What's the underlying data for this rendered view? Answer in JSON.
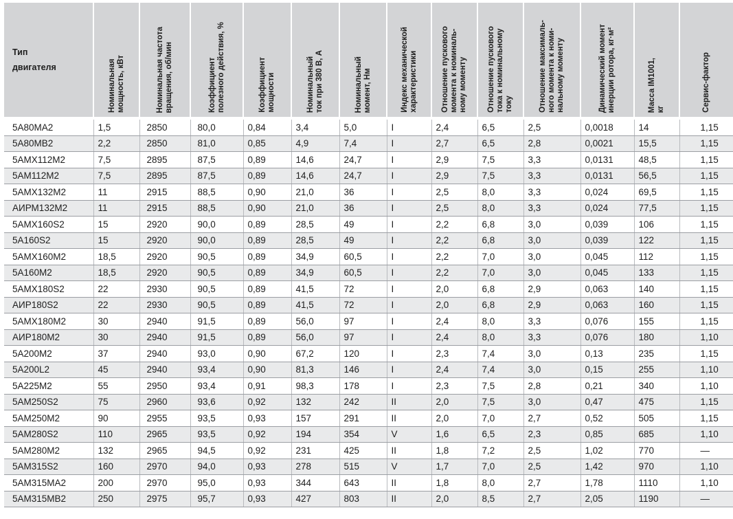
{
  "headers": [
    "Тип\nдвигателя",
    "Номинальная\nмощность, кВт",
    "Номинальная  частота\nвращения, об/мин",
    "Коэффициент\nполезного действия, %",
    "Коэффициент\nмощности",
    "Номинальный\nток при 380 В, А",
    "Номинальный\nмомент, Нм",
    "Индекс механической\nхарактеристики",
    "Отношение пускового\nмомента к номиналь-\nному моменту",
    "Отношение пускового\nтока к номинальному\nтоку",
    "Отношение максималь-\nного момента к номи-\nнальному моменту",
    "Динамический момент\nинерции ротора, кг·м²",
    "Масса IM1001,\nкг",
    "Сервис-фактор"
  ],
  "rows": [
    [
      "5А80МА2",
      "1,5",
      "2850",
      "80,0",
      "0,84",
      "3,4",
      "5,0",
      "I",
      "2,4",
      "6,5",
      "2,5",
      "0,0018",
      "14",
      "1,15"
    ],
    [
      "5А80МВ2",
      "2,2",
      "2850",
      "81,0",
      "0,85",
      "4,9",
      "7,4",
      "I",
      "2,7",
      "6,5",
      "2,8",
      "0,0021",
      "15,5",
      "1,15"
    ],
    [
      "5АМХ112М2",
      "7,5",
      "2895",
      "87,5",
      "0,89",
      "14,6",
      "24,7",
      "I",
      "2,9",
      "7,5",
      "3,3",
      "0,0131",
      "48,5",
      "1,15"
    ],
    [
      "5АМ112М2",
      "7,5",
      "2895",
      "87,5",
      "0,89",
      "14,6",
      "24,7",
      "I",
      "2,9",
      "7,5",
      "3,3",
      "0,0131",
      "56,5",
      "1,15"
    ],
    [
      "5АМХ132М2",
      "11",
      "2915",
      "88,5",
      "0,90",
      "21,0",
      "36",
      "I",
      "2,5",
      "8,0",
      "3,3",
      "0,024",
      "69,5",
      "1,15"
    ],
    [
      "АИРМ132М2",
      "11",
      "2915",
      "88,5",
      "0,90",
      "21,0",
      "36",
      "I",
      "2,5",
      "8,0",
      "3,3",
      "0,024",
      "77,5",
      "1,15"
    ],
    [
      "5АМХ160S2",
      "15",
      "2920",
      "90,0",
      "0,89",
      "28,5",
      "49",
      "I",
      "2,2",
      "6,8",
      "3,0",
      "0,039",
      "106",
      "1,15"
    ],
    [
      "5А160S2",
      "15",
      "2920",
      "90,0",
      "0,89",
      "28,5",
      "49",
      "I",
      "2,2",
      "6,8",
      "3,0",
      "0,039",
      "122",
      "1,15"
    ],
    [
      "5АМХ160М2",
      "18,5",
      "2920",
      "90,5",
      "0,89",
      "34,9",
      "60,5",
      "I",
      "2,2",
      "7,0",
      "3,0",
      "0,045",
      "112",
      "1,15"
    ],
    [
      "5А160М2",
      "18,5",
      "2920",
      "90,5",
      "0,89",
      "34,9",
      "60,5",
      "I",
      "2,2",
      "7,0",
      "3,0",
      "0,045",
      "133",
      "1,15"
    ],
    [
      "5АМХ180S2",
      "22",
      "2930",
      "90,5",
      "0,89",
      "41,5",
      "72",
      "I",
      "2,0",
      "6,8",
      "2,9",
      "0,063",
      "140",
      "1,15"
    ],
    [
      "АИР180S2",
      "22",
      "2930",
      "90,5",
      "0,89",
      "41,5",
      "72",
      "I",
      "2,0",
      "6,8",
      "2,9",
      "0,063",
      "160",
      "1,15"
    ],
    [
      "5АМХ180М2",
      "30",
      "2940",
      "91,5",
      "0,89",
      "56,0",
      "97",
      "I",
      "2,4",
      "8,0",
      "3,3",
      "0,076",
      "155",
      "1,15"
    ],
    [
      "АИР180М2",
      "30",
      "2940",
      "91,5",
      "0,89",
      "56,0",
      "97",
      "I",
      "2,4",
      "8,0",
      "3,3",
      "0,076",
      "180",
      "1,10"
    ],
    [
      "5А200М2",
      "37",
      "2940",
      "93,0",
      "0,90",
      "67,2",
      "120",
      "I",
      "2,3",
      "7,4",
      "3,0",
      "0,13",
      "235",
      "1,15"
    ],
    [
      "5А200L2",
      "45",
      "2940",
      "93,4",
      "0,90",
      "81,3",
      "146",
      "I",
      "2,4",
      "7,4",
      "3,0",
      "0,15",
      "255",
      "1,10"
    ],
    [
      "5А225М2",
      "55",
      "2950",
      "93,4",
      "0,91",
      "98,3",
      "178",
      "I",
      "2,3",
      "7,5",
      "2,8",
      "0,21",
      "340",
      "1,10"
    ],
    [
      "5АМ250S2",
      "75",
      "2960",
      "93,6",
      "0,92",
      "132",
      "242",
      "II",
      "2,0",
      "7,5",
      "3,0",
      "0,47",
      "475",
      "1,15"
    ],
    [
      "5АМ250М2",
      "90",
      "2955",
      "93,5",
      "0,93",
      "157",
      "291",
      "II",
      "2,0",
      "7,0",
      "2,7",
      "0,52",
      "505",
      "1,15"
    ],
    [
      "5АМ280S2",
      "110",
      "2965",
      "93,5",
      "0,92",
      "194",
      "354",
      "V",
      "1,6",
      "6,5",
      "2,3",
      "0,85",
      "685",
      "1,10"
    ],
    [
      "5АМ280М2",
      "132",
      "2965",
      "94,5",
      "0,92",
      "231",
      "425",
      "II",
      "1,8",
      "7,2",
      "2,5",
      "1,02",
      "770",
      "—"
    ],
    [
      "5АМ315S2",
      "160",
      "2970",
      "94,0",
      "0,93",
      "278",
      "515",
      "V",
      "1,7",
      "7,0",
      "2,5",
      "1,42",
      "970",
      "1,10"
    ],
    [
      "5АМ315МА2",
      "200",
      "2970",
      "95,0",
      "0,93",
      "344",
      "643",
      "II",
      "1,8",
      "8,0",
      "2,7",
      "1,78",
      "1110",
      "1,10"
    ],
    [
      "5АМ315МВ2",
      "250",
      "2975",
      "95,7",
      "0,93",
      "427",
      "803",
      "II",
      "2,0",
      "8,5",
      "2,7",
      "2,05",
      "1190",
      "—"
    ]
  ]
}
